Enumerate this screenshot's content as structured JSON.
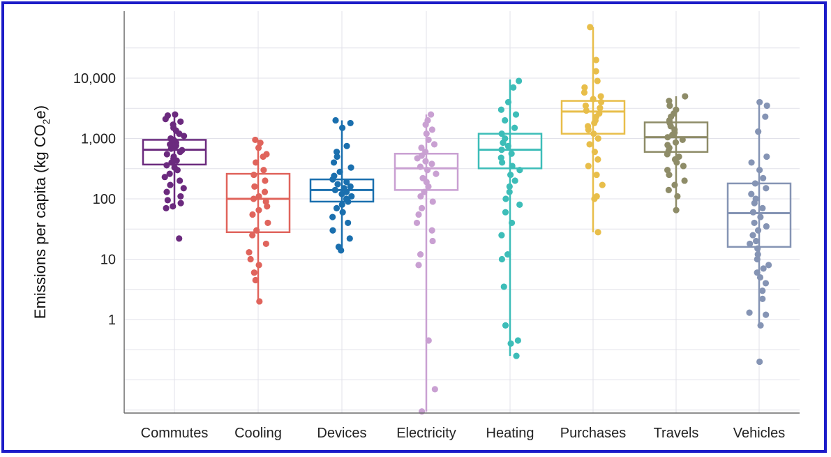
{
  "chart_data": {
    "type": "box",
    "ylabel": "Emissions per capita (kg CO2e)",
    "ylabel_parts": {
      "main": "Emissions per capita (kg CO",
      "sub": "2",
      "tail": "e)"
    },
    "yscale": "log",
    "ylim": [
      0.02,
      100000
    ],
    "yticks": [
      1,
      10,
      100,
      1000,
      10000
    ],
    "yticklabels": [
      "1",
      "10",
      "100",
      "1,000",
      "10,000"
    ],
    "grid": true,
    "categories": [
      "Commutes",
      "Cooling",
      "Devices",
      "Electricity",
      "Heating",
      "Purchases",
      "Travels",
      "Vehicles"
    ],
    "colors": [
      "#6b2a7e",
      "#e0645c",
      "#1a6fae",
      "#c9a0d2",
      "#3dbdb8",
      "#e8be4a",
      "#8e8c68",
      "#8594b4"
    ],
    "boxes": [
      {
        "name": "Commutes",
        "q1": 370,
        "median": 650,
        "q3": 950,
        "whisker_low": 70,
        "whisker_high": 2500,
        "points": [
          22,
          70,
          75,
          85,
          95,
          110,
          130,
          150,
          170,
          200,
          230,
          260,
          300,
          330,
          360,
          400,
          430,
          460,
          500,
          550,
          600,
          640,
          680,
          720,
          760,
          800,
          850,
          900,
          950,
          1000,
          1100,
          1200,
          1350,
          1500,
          1700,
          1900,
          2100,
          2400,
          2500
        ]
      },
      {
        "name": "Cooling",
        "q1": 28,
        "median": 100,
        "q3": 260,
        "whisker_low": 2,
        "whisker_high": 950,
        "points": [
          2,
          4.5,
          6,
          8,
          10,
          13,
          18,
          25,
          30,
          40,
          55,
          65,
          75,
          90,
          100,
          110,
          130,
          160,
          200,
          250,
          300,
          400,
          500,
          550,
          700,
          850,
          950
        ]
      },
      {
        "name": "Devices",
        "q1": 90,
        "median": 140,
        "q3": 210,
        "whisker_low": 14,
        "whisker_high": 2000,
        "points": [
          14,
          16,
          22,
          30,
          40,
          50,
          60,
          70,
          80,
          90,
          100,
          110,
          120,
          130,
          140,
          150,
          160,
          175,
          190,
          210,
          240,
          280,
          330,
          400,
          500,
          600,
          750,
          1500,
          1800,
          2000
        ]
      },
      {
        "name": "Electricity",
        "q1": 140,
        "median": 320,
        "q3": 560,
        "whisker_low": 0.03,
        "whisker_high": 2500,
        "points": [
          0.03,
          0.07,
          0.45,
          8,
          12,
          20,
          30,
          40,
          55,
          70,
          90,
          110,
          130,
          160,
          190,
          220,
          260,
          300,
          340,
          380,
          420,
          470,
          520,
          600,
          700,
          800,
          950,
          1200,
          1400,
          1700,
          2000,
          2500
        ]
      },
      {
        "name": "Heating",
        "q1": 320,
        "median": 650,
        "q3": 1200,
        "whisker_low": 0.25,
        "whisker_high": 9500,
        "points": [
          0.25,
          0.4,
          0.45,
          0.8,
          3.5,
          10,
          12,
          25,
          40,
          60,
          80,
          100,
          130,
          160,
          200,
          250,
          300,
          350,
          400,
          480,
          560,
          650,
          750,
          850,
          1000,
          1200,
          1500,
          2000,
          2500,
          3000,
          4000,
          7000,
          9000
        ]
      },
      {
        "name": "Purchases",
        "q1": 1200,
        "median": 2800,
        "q3": 4200,
        "whisker_low": 28,
        "whisker_high": 70000,
        "points": [
          28,
          100,
          110,
          170,
          250,
          350,
          450,
          600,
          800,
          1000,
          1200,
          1400,
          1600,
          1800,
          2000,
          2300,
          2600,
          2900,
          3200,
          3500,
          4000,
          4500,
          5000,
          5800,
          7000,
          9000,
          13000,
          20000,
          70000
        ]
      },
      {
        "name": "Travels",
        "q1": 600,
        "median": 1050,
        "q3": 1850,
        "whisker_low": 65,
        "whisker_high": 5000,
        "points": [
          65,
          110,
          140,
          170,
          200,
          250,
          300,
          350,
          400,
          450,
          500,
          550,
          620,
          700,
          780,
          860,
          950,
          1050,
          1150,
          1250,
          1400,
          1600,
          1800,
          2000,
          2300,
          2600,
          3000,
          3500,
          4200,
          5000
        ]
      },
      {
        "name": "Vehicles",
        "q1": 16,
        "median": 58,
        "q3": 180,
        "whisker_low": 0.8,
        "whisker_high": 4000,
        "points": [
          0.2,
          0.8,
          1.2,
          1.3,
          2.2,
          3,
          4,
          5,
          6,
          7,
          8,
          10,
          12,
          15,
          18,
          20,
          25,
          30,
          35,
          40,
          50,
          60,
          70,
          85,
          100,
          120,
          150,
          180,
          220,
          300,
          400,
          500,
          1300,
          2300,
          3500,
          4000
        ]
      }
    ]
  }
}
